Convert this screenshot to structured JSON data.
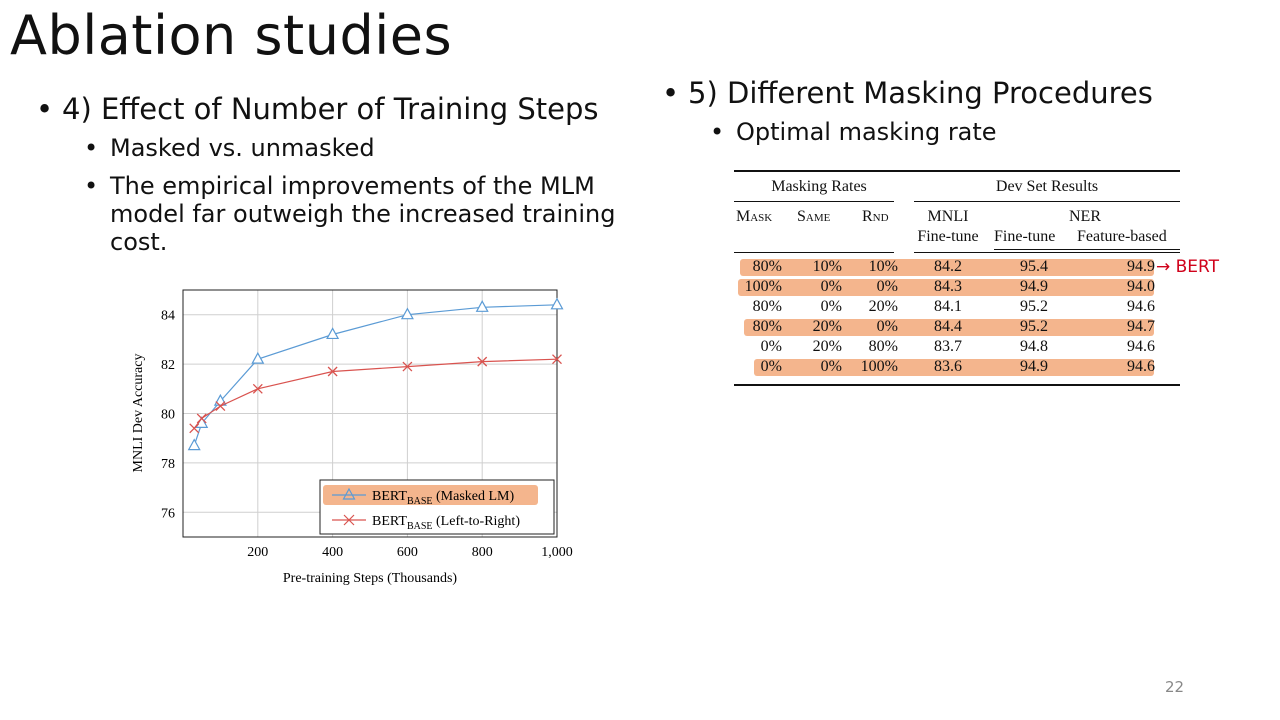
{
  "slide": {
    "title": "Ablation studies",
    "page_number": "22"
  },
  "left": {
    "heading": "4) Effect of Number of Training Steps",
    "sub1": "Masked vs. unmasked",
    "sub2_line1": "The empirical improvements of the MLM",
    "sub2_line2": "model far outweigh the increased training",
    "sub2_line3": "cost."
  },
  "right": {
    "heading": "5) Different Masking Procedures",
    "sub1": "Optimal masking rate"
  },
  "table": {
    "group_masking": "Masking Rates",
    "group_dev": "Dev Set Results",
    "col_mask": "Mask",
    "col_same": "Same",
    "col_rnd": "Rnd",
    "col_mnli": "MNLI",
    "col_mnli_sub": "Fine-tune",
    "col_ner": "NER",
    "col_ner_ft": "Fine-tune",
    "col_ner_fb": "Feature-based",
    "rows": [
      {
        "mask": "80%",
        "same": "10%",
        "rnd": "10%",
        "mnli": "84.2",
        "ner_ft": "95.4",
        "ner_fb": "94.9",
        "highlight": true
      },
      {
        "mask": "100%",
        "same": "0%",
        "rnd": "0%",
        "mnli": "84.3",
        "ner_ft": "94.9",
        "ner_fb": "94.0",
        "highlight": true
      },
      {
        "mask": "80%",
        "same": "0%",
        "rnd": "20%",
        "mnli": "84.1",
        "ner_ft": "95.2",
        "ner_fb": "94.6",
        "highlight": false
      },
      {
        "mask": "80%",
        "same": "20%",
        "rnd": "0%",
        "mnli": "84.4",
        "ner_ft": "95.2",
        "ner_fb": "94.7",
        "highlight": true
      },
      {
        "mask": "0%",
        "same": "20%",
        "rnd": "80%",
        "mnli": "83.7",
        "ner_ft": "94.8",
        "ner_fb": "94.6",
        "highlight": false
      },
      {
        "mask": "0%",
        "same": "0%",
        "rnd": "100%",
        "mnli": "83.6",
        "ner_ft": "94.9",
        "ner_fb": "94.6",
        "highlight": true
      }
    ],
    "marker": "→ BERT",
    "highlight_color": "#f4b58d",
    "marker_color": "#d0021b"
  },
  "chart_data": {
    "type": "line",
    "xlabel": "Pre-training Steps (Thousands)",
    "ylabel": "MNLI Dev Accuracy",
    "xlim": [
      0,
      1000
    ],
    "ylim": [
      75,
      85
    ],
    "x_ticks": [
      200,
      400,
      600,
      800,
      1000
    ],
    "x_tick_labels": [
      "200",
      "400",
      "600",
      "800",
      "1,000"
    ],
    "y_ticks": [
      76,
      78,
      80,
      82,
      84
    ],
    "y_tick_labels": [
      "76",
      "78",
      "80",
      "82",
      "84"
    ],
    "grid": true,
    "legend_position": "bottom-right",
    "series": [
      {
        "name_main": "BERT",
        "name_sub": "BASE",
        "name_rest": " (Masked LM)",
        "marker": "triangle",
        "color": "#5b9bd5",
        "legend_highlight": "#f4b58d",
        "x": [
          30,
          50,
          100,
          200,
          400,
          600,
          800,
          1000
        ],
        "y": [
          78.7,
          79.6,
          80.5,
          82.2,
          83.2,
          84.0,
          84.3,
          84.4
        ]
      },
      {
        "name_main": "BERT",
        "name_sub": "BASE",
        "name_rest": " (Left-to-Right)",
        "marker": "x",
        "color": "#d9534f",
        "x": [
          30,
          50,
          100,
          200,
          400,
          600,
          800,
          1000
        ],
        "y": [
          79.4,
          79.8,
          80.3,
          81.0,
          81.7,
          81.9,
          82.1,
          82.2
        ]
      }
    ]
  }
}
